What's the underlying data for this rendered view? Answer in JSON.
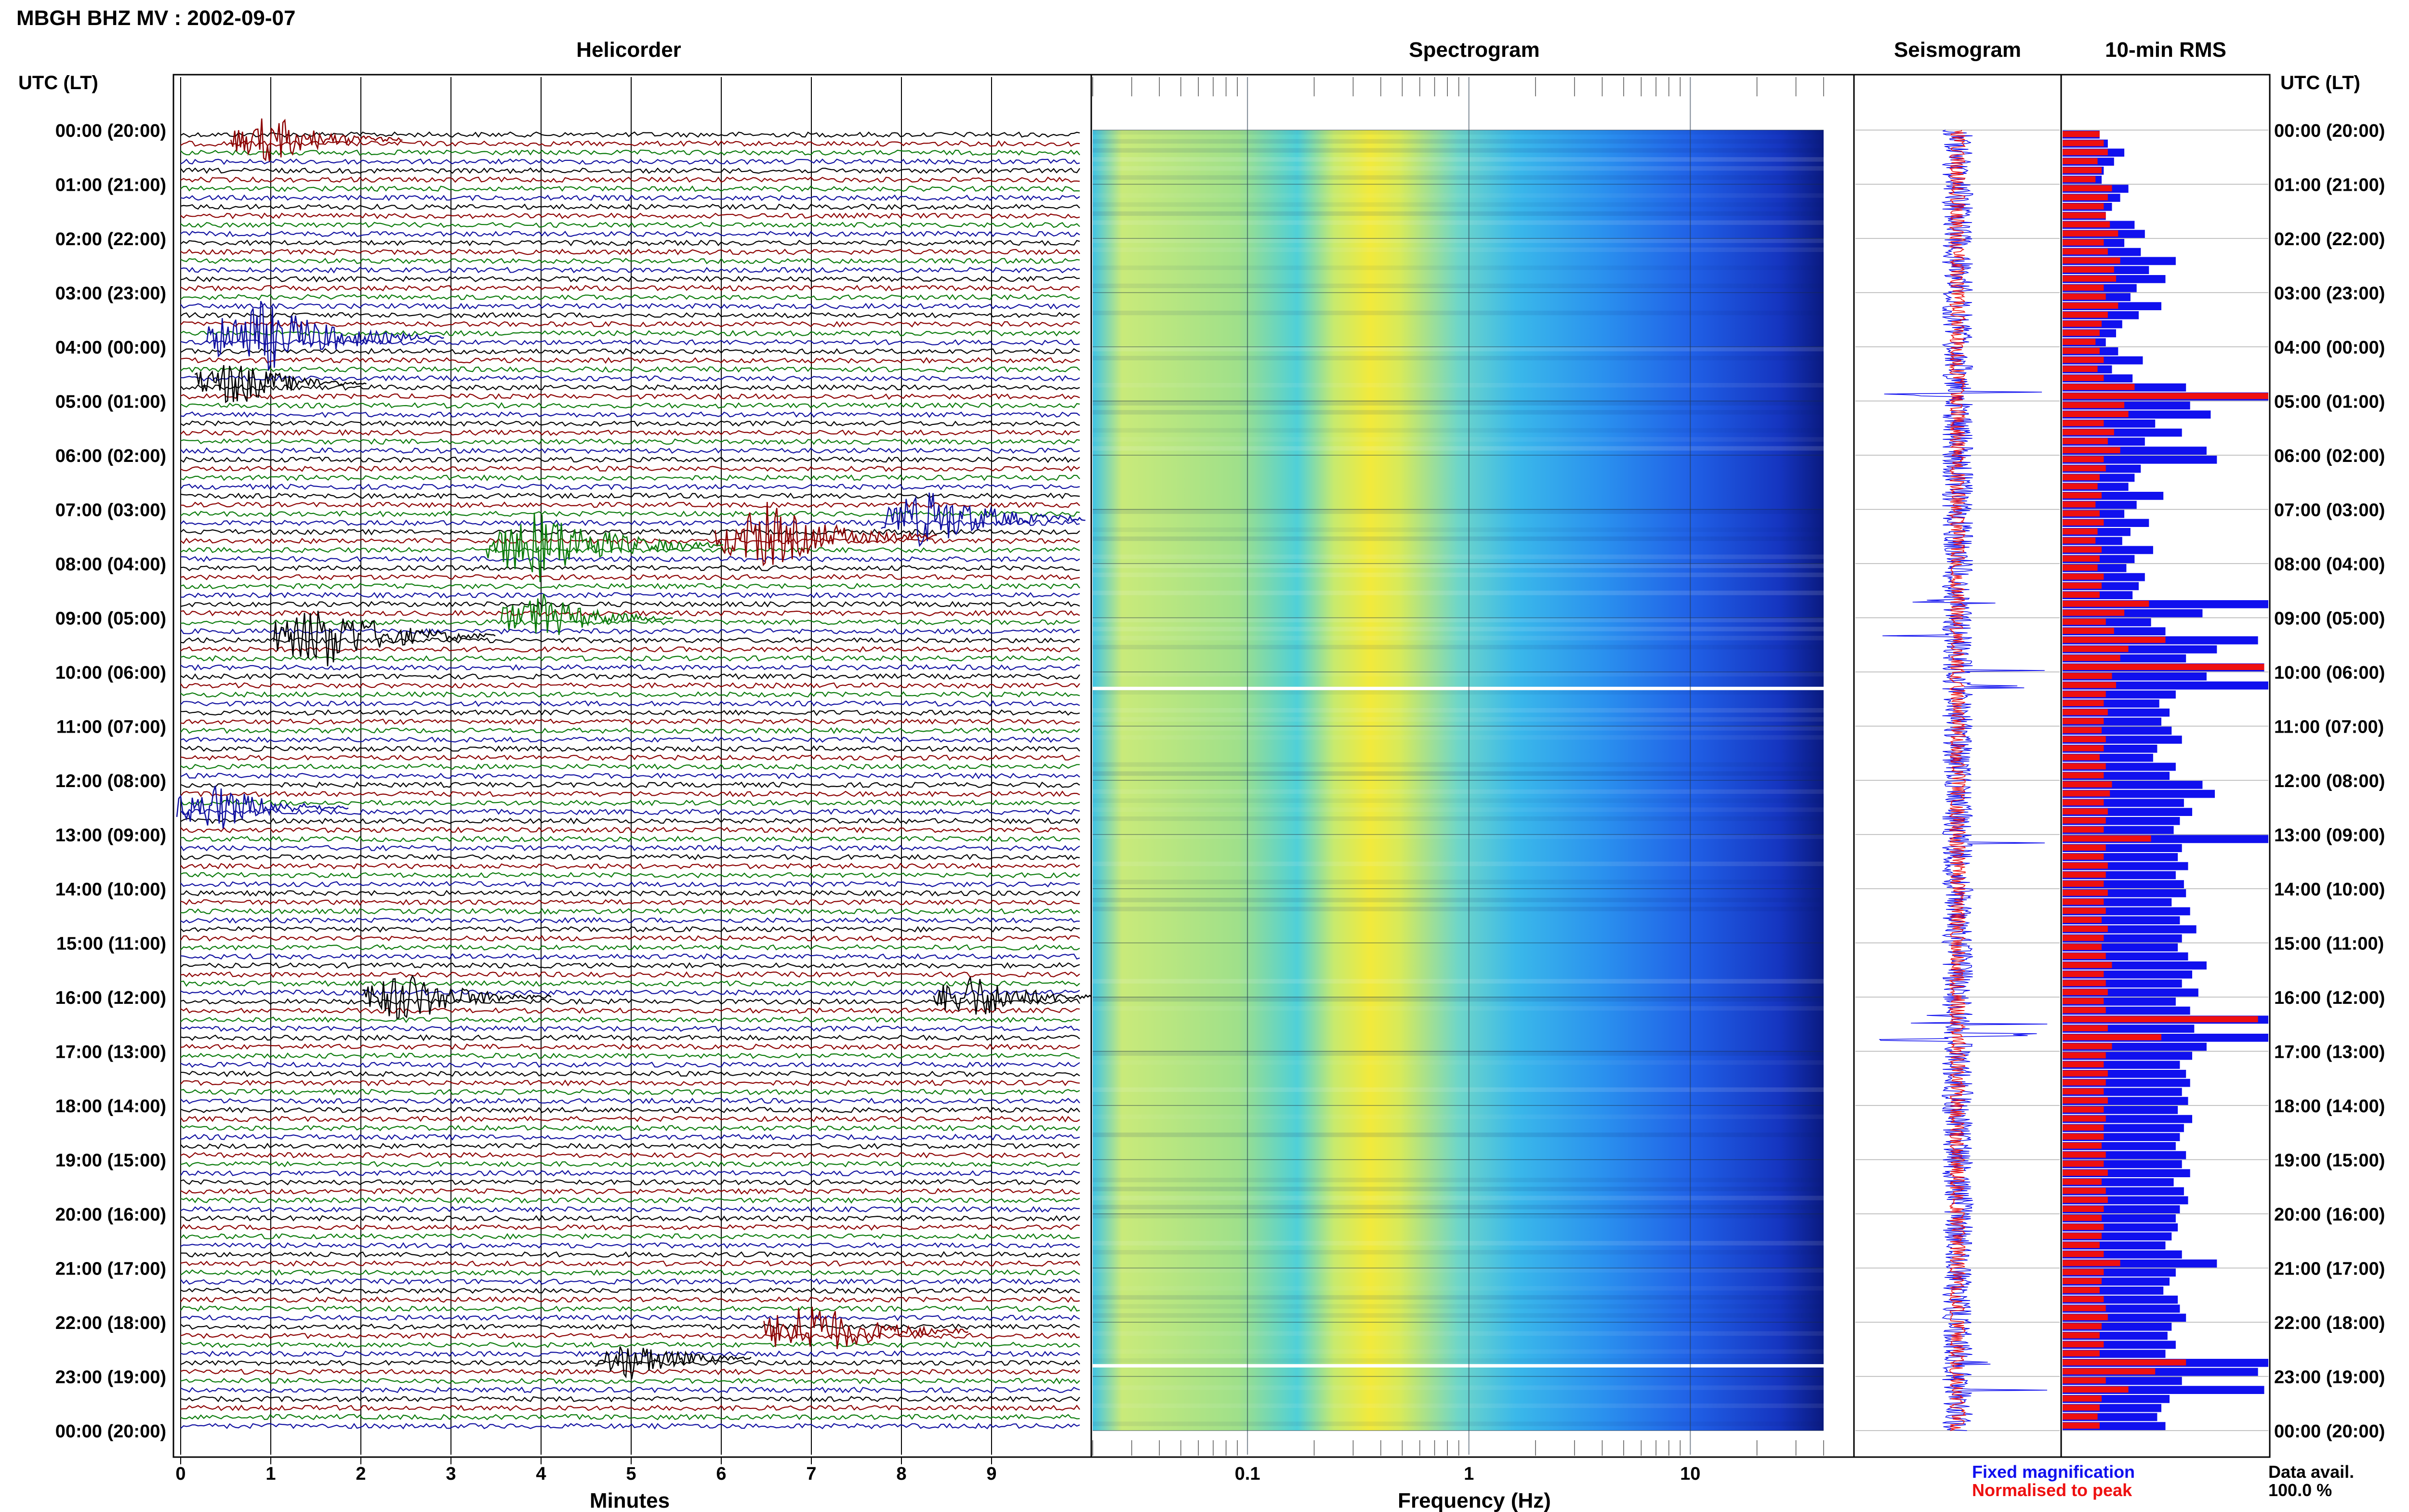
{
  "header": {
    "station": "MBGH BHZ MV : 2002-09-07",
    "utc_label": "UTC (LT)"
  },
  "panels": {
    "helicorder": "Helicorder",
    "spectrogram": "Spectrogram",
    "seismogram": "Seismogram",
    "rms": "10-min RMS"
  },
  "axes": {
    "minutes_label": "Minutes",
    "frequency_label": "Frequency (Hz)",
    "minute_ticks": [
      "0",
      "1",
      "2",
      "3",
      "4",
      "5",
      "6",
      "7",
      "8",
      "9"
    ],
    "frequency_ticks": [
      "0.1",
      "1",
      "10"
    ]
  },
  "time_labels": [
    "00:00 (20:00)",
    "01:00 (21:00)",
    "02:00 (22:00)",
    "03:00 (23:00)",
    "04:00 (00:00)",
    "05:00 (01:00)",
    "06:00 (02:00)",
    "07:00 (03:00)",
    "08:00 (04:00)",
    "09:00 (05:00)",
    "10:00 (06:00)",
    "11:00 (07:00)",
    "12:00 (08:00)",
    "13:00 (09:00)",
    "14:00 (10:00)",
    "15:00 (11:00)",
    "16:00 (12:00)",
    "17:00 (13:00)",
    "18:00 (14:00)",
    "19:00 (15:00)",
    "20:00 (16:00)",
    "21:00 (17:00)",
    "22:00 (18:00)",
    "23:00 (19:00)",
    "00:00 (20:00)"
  ],
  "legend": {
    "fixed": "Fixed magnification",
    "normalised": "Normalised to peak",
    "fixed_color": "#1010ee",
    "normalised_color": "#ee1010"
  },
  "data_availability": {
    "label": "Data avail.",
    "value": "100.0 %"
  },
  "colors": {
    "trace_cycle": [
      "#000000",
      "#8b0000",
      "#0a7a0a",
      "#1010a0"
    ],
    "rms_fixed": "#1010ee",
    "rms_normalised": "#ee1010"
  },
  "chart_data": {
    "type": "heatmap",
    "title": "MBGH BHZ MV : 2002-09-07",
    "x_helicorder": {
      "label": "Minutes",
      "range": [
        0,
        10
      ]
    },
    "x_spectrogram": {
      "label": "Frequency (Hz)",
      "range": [
        0.02,
        40
      ],
      "scale": "log"
    },
    "y": {
      "label": "UTC (LT)",
      "range": [
        "00:00",
        "24:00"
      ]
    },
    "rows_per_hour": 6,
    "gaps_utc": [
      "10:10",
      "22:40"
    ],
    "events": [
      {
        "utc": "00:10",
        "minute": 1.0,
        "size": 0.6
      },
      {
        "utc": "03:50",
        "minute": 0.9,
        "size": 1.0
      },
      {
        "utc": "04:40",
        "minute": 0.6,
        "size": 0.6
      },
      {
        "utc": "07:10",
        "minute": 8.3,
        "size": 0.8
      },
      {
        "utc": "07:30",
        "minute": 6.5,
        "size": 0.9
      },
      {
        "utc": "07:40",
        "minute": 4.0,
        "size": 1.0
      },
      {
        "utc": "09:20",
        "minute": 1.6,
        "size": 0.9
      },
      {
        "utc": "09:00",
        "minute": 4.0,
        "size": 0.6
      },
      {
        "utc": "12:30",
        "minute": 0.4,
        "size": 0.6
      },
      {
        "utc": "16:00",
        "minute": 2.5,
        "size": 0.7
      },
      {
        "utc": "16:00",
        "minute": 8.8,
        "size": 0.6
      },
      {
        "utc": "22:10",
        "minute": 7.0,
        "size": 0.8
      },
      {
        "utc": "22:40",
        "minute": 5.0,
        "size": 0.5
      }
    ],
    "rms_10min": {
      "fixed_magnification": [
        0.18,
        0.22,
        0.3,
        0.25,
        0.2,
        0.19,
        0.32,
        0.28,
        0.24,
        0.21,
        0.35,
        0.4,
        0.3,
        0.38,
        0.55,
        0.42,
        0.5,
        0.36,
        0.33,
        0.48,
        0.37,
        0.29,
        0.26,
        0.21,
        0.27,
        0.39,
        0.24,
        0.34,
        0.6,
        1.0,
        0.62,
        0.72,
        0.45,
        0.58,
        0.4,
        0.7,
        0.75,
        0.38,
        0.35,
        0.32,
        0.49,
        0.36,
        0.3,
        0.42,
        0.33,
        0.29,
        0.44,
        0.35,
        0.31,
        0.4,
        0.37,
        0.34,
        1.0,
        0.68,
        0.43,
        0.5,
        0.95,
        0.75,
        0.6,
        0.98,
        0.7,
        1.0,
        0.55,
        0.47,
        0.52,
        0.48,
        0.53,
        0.58,
        0.46,
        0.44,
        0.55,
        0.52,
        0.68,
        0.74,
        0.59,
        0.63,
        0.57,
        0.54,
        1.0,
        0.58,
        0.56,
        0.61,
        0.55,
        0.59,
        0.6,
        0.53,
        0.62,
        0.57,
        0.65,
        0.58,
        0.56,
        0.61,
        0.7,
        0.63,
        0.58,
        0.66,
        0.55,
        0.62,
        1.0,
        0.64,
        1.0,
        0.7,
        0.63,
        0.57,
        0.6,
        0.62,
        0.58,
        0.61,
        0.56,
        0.63,
        0.59,
        0.57,
        0.55,
        0.6,
        0.58,
        0.62,
        0.54,
        0.59,
        0.61,
        0.57,
        0.55,
        0.56,
        0.53,
        0.5,
        0.58,
        0.75,
        0.55,
        0.52,
        0.49,
        0.56,
        0.57,
        0.6,
        0.53,
        0.51,
        0.55,
        0.5,
        1.0,
        0.95,
        0.58,
        0.98,
        0.52,
        0.48,
        0.46,
        0.5
      ],
      "normalised_to_peak": [
        0.18,
        0.2,
        0.22,
        0.17,
        0.19,
        0.16,
        0.24,
        0.22,
        0.2,
        0.21,
        0.23,
        0.27,
        0.2,
        0.22,
        0.28,
        0.25,
        0.26,
        0.2,
        0.21,
        0.27,
        0.22,
        0.19,
        0.18,
        0.16,
        0.18,
        0.2,
        0.17,
        0.2,
        0.35,
        1.0,
        0.3,
        0.32,
        0.2,
        0.25,
        0.22,
        0.28,
        0.2,
        0.21,
        0.18,
        0.17,
        0.19,
        0.16,
        0.18,
        0.2,
        0.17,
        0.16,
        0.19,
        0.18,
        0.17,
        0.2,
        0.19,
        0.18,
        0.42,
        0.3,
        0.21,
        0.25,
        0.5,
        0.32,
        0.28,
        0.98,
        0.24,
        0.26,
        0.21,
        0.2,
        0.22,
        0.2,
        0.19,
        0.21,
        0.2,
        0.18,
        0.21,
        0.2,
        0.24,
        0.23,
        0.2,
        0.22,
        0.21,
        0.2,
        0.43,
        0.21,
        0.2,
        0.22,
        0.21,
        0.2,
        0.22,
        0.2,
        0.21,
        0.19,
        0.22,
        0.2,
        0.19,
        0.21,
        0.24,
        0.2,
        0.21,
        0.22,
        0.2,
        0.21,
        0.95,
        0.22,
        0.48,
        0.24,
        0.21,
        0.2,
        0.22,
        0.21,
        0.2,
        0.22,
        0.2,
        0.21,
        0.2,
        0.2,
        0.19,
        0.21,
        0.2,
        0.22,
        0.19,
        0.21,
        0.22,
        0.2,
        0.19,
        0.2,
        0.19,
        0.18,
        0.2,
        0.28,
        0.2,
        0.19,
        0.18,
        0.2,
        0.21,
        0.22,
        0.19,
        0.18,
        0.2,
        0.18,
        0.6,
        0.45,
        0.21,
        0.32,
        0.19,
        0.18,
        0.17,
        0.18
      ]
    }
  }
}
